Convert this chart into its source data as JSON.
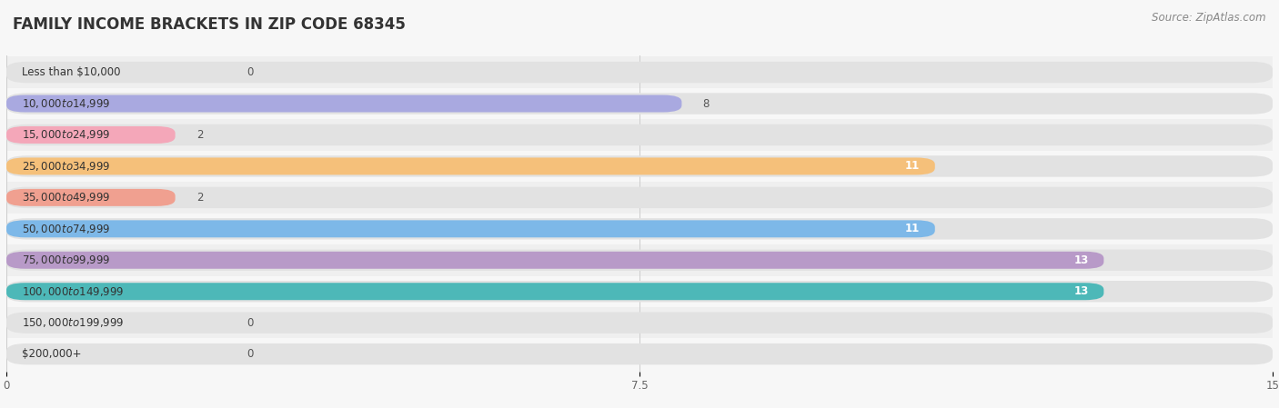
{
  "title": "FAMILY INCOME BRACKETS IN ZIP CODE 68345",
  "source": "Source: ZipAtlas.com",
  "categories": [
    "Less than $10,000",
    "$10,000 to $14,999",
    "$15,000 to $24,999",
    "$25,000 to $34,999",
    "$35,000 to $49,999",
    "$50,000 to $74,999",
    "$75,000 to $99,999",
    "$100,000 to $149,999",
    "$150,000 to $199,999",
    "$200,000+"
  ],
  "values": [
    0,
    8,
    2,
    11,
    2,
    11,
    13,
    13,
    0,
    0
  ],
  "bar_colors": [
    "#6ecece",
    "#a9a9e0",
    "#f4a7b9",
    "#f5c07a",
    "#f0a090",
    "#7db8e8",
    "#b89ac8",
    "#4db8b8",
    "#c0c8f0",
    "#f9c0d0"
  ],
  "xlim": [
    0,
    15
  ],
  "xticks": [
    0,
    7.5,
    15
  ],
  "background_color": "#f7f7f7",
  "bar_bg_color": "#e2e2e2",
  "row_colors": [
    "#efefef",
    "#f7f7f7"
  ],
  "title_fontsize": 12,
  "label_fontsize": 8.5,
  "value_fontsize": 8.5,
  "source_fontsize": 8.5
}
